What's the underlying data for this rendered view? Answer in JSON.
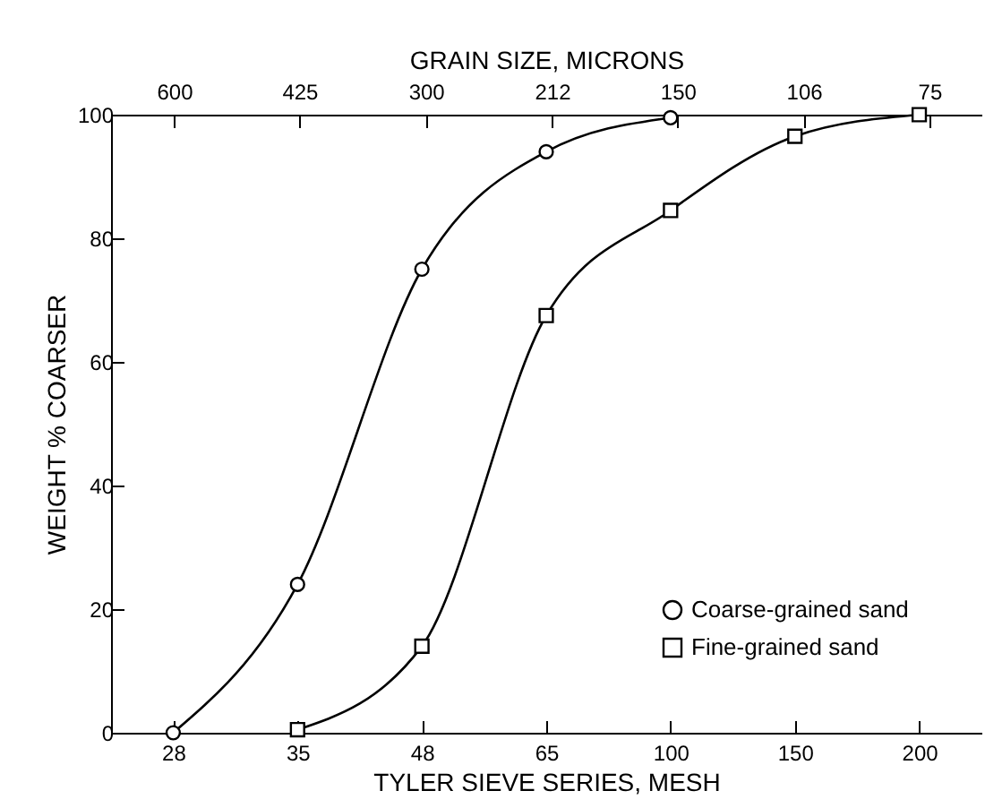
{
  "chart_data": {
    "type": "line",
    "xlabel": "TYLER SIEVE SERIES, MESH",
    "ylabel": "WEIGHT % COARSER",
    "x2label": "GRAIN SIZE, MICRONS",
    "log": "x2",
    "categories": [
      "28",
      "35",
      "48",
      "65",
      "100",
      "150",
      "200"
    ],
    "x2lim": [
      714,
      65
    ],
    "x2ticks": [
      600,
      425,
      300,
      212,
      150,
      106,
      75
    ],
    "ylim": [
      0,
      100
    ],
    "yticks": [
      0,
      20,
      40,
      60,
      80,
      100
    ],
    "grid": false,
    "legend": "bottom right",
    "line_style": "solid",
    "series": [
      {
        "name": "Coarse-grained sand",
        "color": "#000000",
        "marker": "circle",
        "values": [
          0,
          24,
          75,
          94,
          99.5,
          null,
          null
        ]
      },
      {
        "name": "Fine-grained sand",
        "color": "#000000",
        "marker": "square",
        "values": [
          null,
          0.5,
          14,
          67.5,
          84.5,
          96.5,
          100
        ]
      }
    ]
  }
}
